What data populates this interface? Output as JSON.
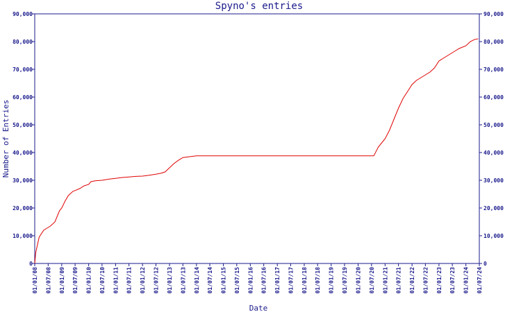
{
  "chart_data": {
    "type": "line",
    "title": "Spyno's entries",
    "xlabel": "Date",
    "ylabel": "Number of Entries",
    "ylim": [
      0,
      90000
    ],
    "y_ticks": [
      "0",
      "10,000",
      "20,000",
      "30,000",
      "40,000",
      "50,000",
      "60,000",
      "70,000",
      "80,000",
      "90,000"
    ],
    "x_ticks": [
      "01/01/08",
      "01/07/08",
      "01/01/09",
      "01/07/09",
      "01/01/10",
      "01/07/10",
      "01/01/11",
      "01/07/11",
      "01/01/12",
      "01/07/12",
      "01/01/13",
      "01/07/13",
      "01/01/14",
      "01/07/14",
      "01/01/15",
      "01/07/15",
      "01/01/16",
      "01/07/16",
      "01/01/17",
      "01/07/17",
      "01/01/18",
      "01/07/18",
      "01/01/19",
      "01/07/19",
      "01/01/20",
      "01/07/20",
      "01/01/21",
      "01/07/21",
      "01/01/22",
      "01/07/22",
      "01/01/23",
      "01/07/23",
      "01/01/24",
      "01/07/24"
    ],
    "grid": false,
    "colors": {
      "axis": "#1a1a8c",
      "line": "#e00000"
    },
    "series": [
      {
        "x": [
          "2008-01-01",
          "2008-01-15",
          "2008-03-01",
          "2008-05-01",
          "2008-06-01",
          "2008-08-01",
          "2008-10-01",
          "2008-12-01",
          "2009-01-01",
          "2009-02-15",
          "2009-04-01",
          "2009-06-01",
          "2009-07-01",
          "2009-09-01",
          "2009-11-01",
          "2010-01-01",
          "2010-02-01",
          "2010-04-01",
          "2010-07-01",
          "2010-10-01",
          "2011-01-01",
          "2011-04-01",
          "2011-07-01",
          "2011-10-01",
          "2012-01-01",
          "2012-04-01",
          "2012-07-01",
          "2012-09-01",
          "2012-11-01",
          "2013-01-01",
          "2013-03-01",
          "2013-05-01",
          "2013-07-01",
          "2013-10-01",
          "2014-01-01",
          "2014-07-01",
          "2015-01-01",
          "2016-01-01",
          "2017-01-01",
          "2018-01-01",
          "2019-01-01",
          "2020-01-01",
          "2020-08-01",
          "2020-10-01",
          "2020-12-01",
          "2021-01-01",
          "2021-03-01",
          "2021-05-01",
          "2021-07-01",
          "2021-09-01",
          "2021-11-01",
          "2022-01-01",
          "2022-03-01",
          "2022-05-01",
          "2022-07-01",
          "2022-09-01",
          "2022-11-01",
          "2023-01-01",
          "2023-03-01",
          "2023-06-01",
          "2023-08-01",
          "2023-10-01",
          "2024-01-01",
          "2024-03-01",
          "2024-05-01",
          "2024-06-15"
        ],
        "values": [
          0,
          4000,
          9500,
          12000,
          12500,
          13500,
          15000,
          19000,
          20000,
          22500,
          24500,
          26000,
          26300,
          27000,
          28000,
          28500,
          29500,
          29800,
          30000,
          30400,
          30700,
          31000,
          31200,
          31400,
          31500,
          31800,
          32200,
          32500,
          33000,
          34500,
          36000,
          37200,
          38200,
          38500,
          38800,
          38800,
          38800,
          38800,
          38800,
          38800,
          38800,
          38800,
          38800,
          42000,
          44000,
          45000,
          48000,
          52000,
          56000,
          59500,
          62000,
          64500,
          66000,
          67000,
          68000,
          69000,
          70500,
          73000,
          74000,
          75500,
          76500,
          77500,
          78500,
          80000,
          80800,
          81000
        ]
      }
    ]
  }
}
